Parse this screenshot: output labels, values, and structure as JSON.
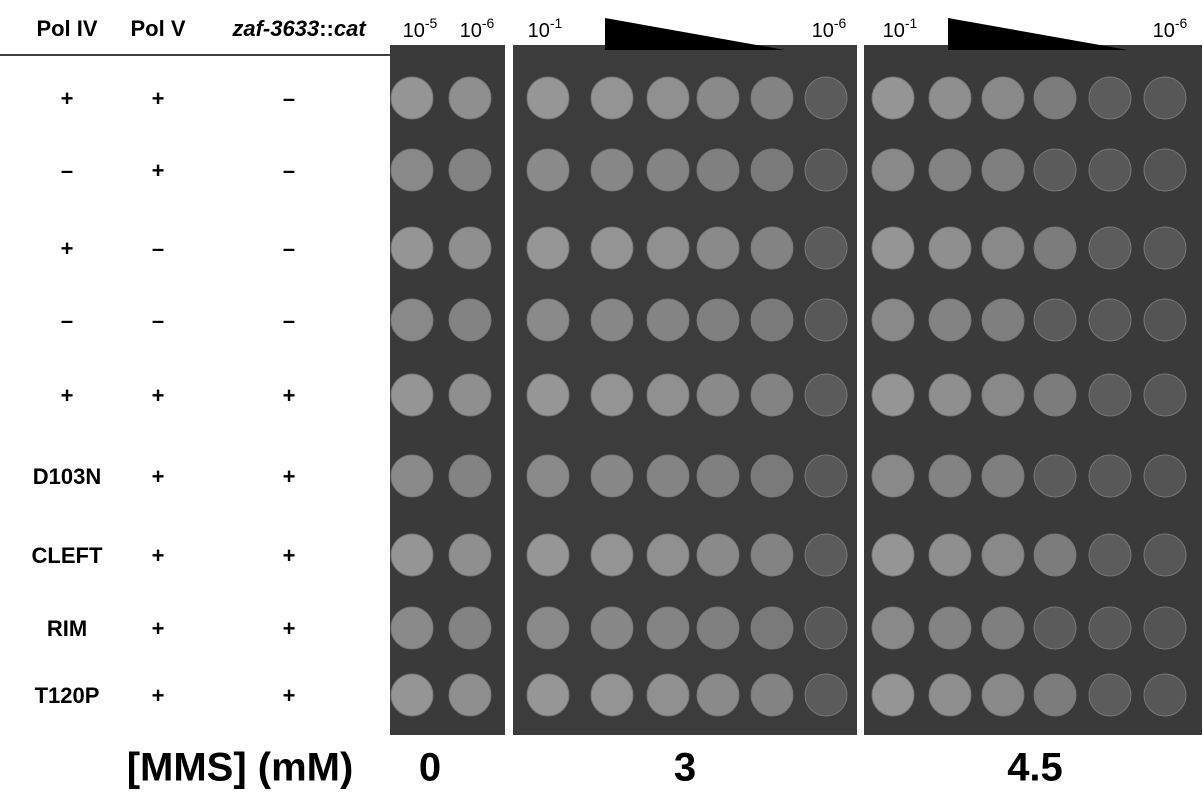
{
  "header": {
    "columns": [
      "Pol IV",
      "Pol V",
      [
        "zaf-3633",
        "::",
        "cat"
      ]
    ],
    "dilutions": [
      {
        "base": "10",
        "exponent": "-5"
      },
      {
        "base": "10",
        "exponent": "-6"
      },
      {
        "base": "10",
        "exponent": "-1"
      },
      {
        "base": "10",
        "exponent": "-6"
      },
      {
        "base": "10",
        "exponent": "-1"
      },
      {
        "base": "10",
        "exponent": "-6"
      }
    ]
  },
  "rows": [
    [
      "+",
      "+",
      "–"
    ],
    [
      "–",
      "+",
      "–"
    ],
    [
      "+",
      "–",
      "–"
    ],
    [
      "–",
      "–",
      "–"
    ],
    [
      "+",
      "+",
      "+"
    ],
    [
      "D103N",
      "+",
      "+"
    ],
    [
      "CLEFT",
      "+",
      "+"
    ],
    [
      "RIM",
      "+",
      "+"
    ],
    [
      "T120P",
      "+",
      "+"
    ]
  ],
  "footer": {
    "label": "[MMS] (mM)",
    "plates": [
      "0",
      "3",
      "4.5"
    ]
  }
}
